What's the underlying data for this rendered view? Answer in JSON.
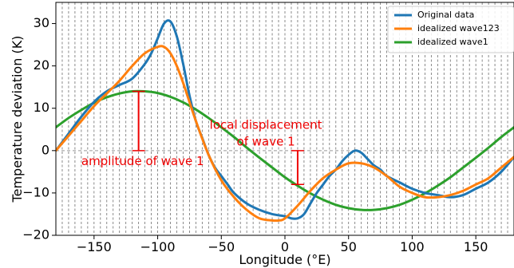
{
  "chart_data": {
    "type": "line",
    "xlabel": "Longitude (°E)",
    "ylabel": "Temperature deviation (K)",
    "xlim": [
      -180,
      180
    ],
    "ylim": [
      -20,
      35
    ],
    "xticks": [
      -150,
      -100,
      -50,
      0,
      50,
      100,
      150
    ],
    "yticks": [
      -20,
      -10,
      0,
      10,
      20,
      30
    ],
    "xtick_labels": [
      "−150",
      "−100",
      "−50",
      "0",
      "50",
      "100",
      "150"
    ],
    "ytick_labels": [
      "−20",
      "−10",
      "0",
      "10",
      "20",
      "30"
    ],
    "grid": "vertical dashed lines every 5° longitude",
    "zero_line": "horizontal dashed line at y=0",
    "legend": "top-right",
    "series": [
      {
        "name": "Original data",
        "color": "#1f77b4",
        "x": [
          -180,
          -170,
          -160,
          -150,
          -140,
          -130,
          -120,
          -110,
          -105,
          -100,
          -95,
          -90,
          -85,
          -80,
          -75,
          -70,
          -65,
          -60,
          -55,
          -50,
          -45,
          -40,
          -30,
          -20,
          -10,
          0,
          5,
          10,
          15,
          20,
          25,
          30,
          35,
          40,
          45,
          50,
          55,
          60,
          65,
          70,
          75,
          80,
          90,
          100,
          110,
          120,
          130,
          140,
          150,
          160,
          170,
          180
        ],
        "y": [
          0,
          4,
          8,
          11.5,
          14,
          15.5,
          17,
          20.5,
          23,
          26.5,
          30,
          30.5,
          27,
          20.5,
          13,
          7,
          3,
          -1,
          -4,
          -6,
          -8,
          -10,
          -12.5,
          -14,
          -15,
          -15.5,
          -16,
          -16,
          -15,
          -12.5,
          -10,
          -8,
          -6,
          -4.5,
          -2.5,
          -1,
          0,
          -0.5,
          -2,
          -3.5,
          -4.5,
          -6,
          -7.5,
          -9,
          -10,
          -10.5,
          -11,
          -10.5,
          -9,
          -7.5,
          -5,
          -1.5
        ]
      },
      {
        "name": "idealized wave123",
        "color": "#ff7f0e",
        "x": [
          -180,
          -170,
          -160,
          -150,
          -140,
          -130,
          -120,
          -110,
          -100,
          -95,
          -90,
          -85,
          -80,
          -70,
          -60,
          -50,
          -40,
          -30,
          -20,
          -10,
          -5,
          0,
          10,
          20,
          30,
          40,
          50,
          60,
          70,
          80,
          90,
          100,
          110,
          120,
          130,
          140,
          150,
          160,
          170,
          180
        ],
        "y": [
          0,
          3.5,
          7,
          10.5,
          13.5,
          16.5,
          20,
          23,
          24.5,
          24.5,
          23,
          20,
          16,
          7,
          -1,
          -7,
          -11,
          -14,
          -16,
          -16.5,
          -16.5,
          -16,
          -13,
          -9.5,
          -6.5,
          -4.5,
          -3,
          -3,
          -4,
          -6,
          -8.5,
          -10,
          -11,
          -11,
          -10.5,
          -9.5,
          -8,
          -6.5,
          -4,
          -1.5
        ]
      },
      {
        "name": "idealized wave1",
        "color": "#2ca02c",
        "x": [
          -180,
          -170,
          -160,
          -150,
          -140,
          -130,
          -120,
          -110,
          -100,
          -90,
          -80,
          -70,
          -60,
          -50,
          -40,
          -30,
          -20,
          -10,
          0,
          10,
          20,
          30,
          40,
          50,
          60,
          70,
          80,
          90,
          100,
          110,
          120,
          130,
          140,
          150,
          160,
          170,
          180
        ],
        "y": [
          5.5,
          7.7,
          9.6,
          11.3,
          12.6,
          13.5,
          14.0,
          14.0,
          13.6,
          12.7,
          11.4,
          9.7,
          7.7,
          5.5,
          3.2,
          0.7,
          -1.7,
          -4.0,
          -6.3,
          -8.3,
          -10.1,
          -11.6,
          -12.8,
          -13.6,
          -14.0,
          -14.0,
          -13.6,
          -12.8,
          -11.6,
          -10.1,
          -8.3,
          -6.3,
          -4.0,
          -1.7,
          0.7,
          3.2,
          5.5
        ]
      }
    ],
    "annotations": [
      {
        "id": "amplitude-wave1",
        "text": "amplitude of wave 1",
        "color": "#ee0000",
        "bar_x": -115,
        "bar_y": [
          0,
          14
        ],
        "text_x": -160,
        "text_y": -2.6
      },
      {
        "id": "local-displacement",
        "text_lines": [
          "local displacement",
          "of wave 1"
        ],
        "color": "#ee0000",
        "bar_x": 10,
        "bar_y": [
          -8,
          0
        ],
        "text_x": -15,
        "text_y": [
          6,
          2
        ]
      }
    ]
  }
}
